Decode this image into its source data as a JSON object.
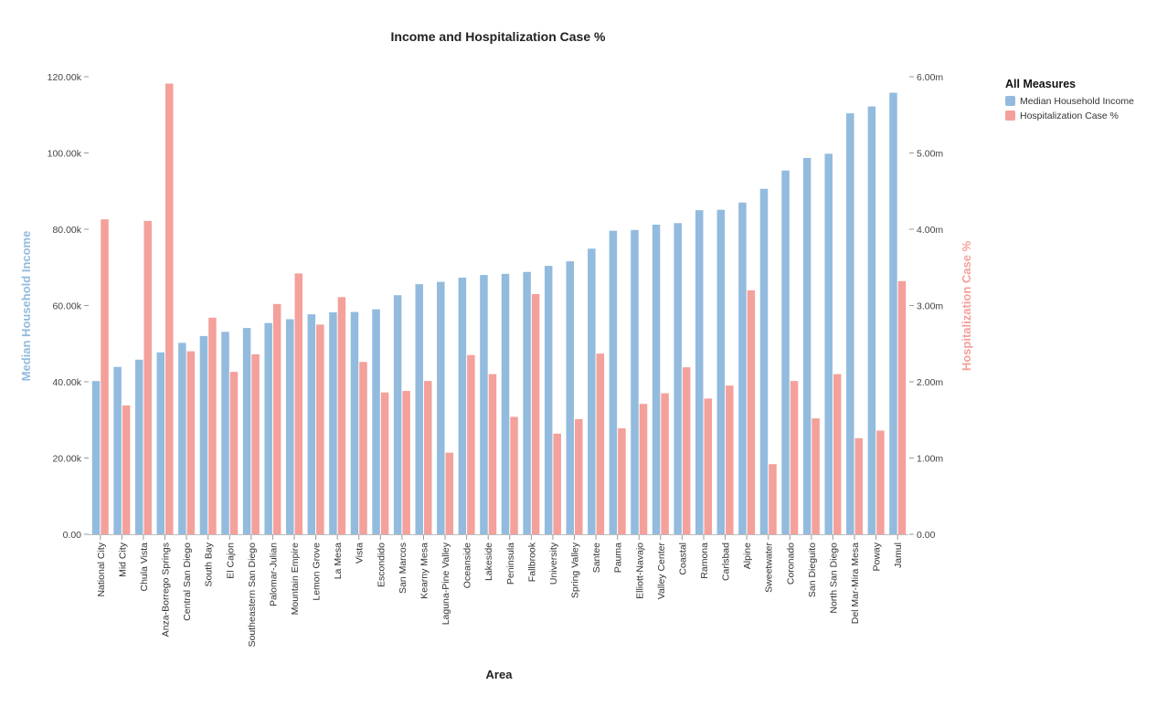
{
  "chart_data": {
    "type": "bar",
    "title": "Income and Hospitalization Case %",
    "xlabel": "Area",
    "ylabel_left": "Median Household Income",
    "ylabel_right": "Hospitalization Case %",
    "ylim_left": [
      0,
      120000
    ],
    "ylim_right": [
      0,
      0.006
    ],
    "yticks_left": [
      "0.00",
      "20.00k",
      "40.00k",
      "60.00k",
      "80.00k",
      "100.00k",
      "120.00k"
    ],
    "yticks_right": [
      "0.00",
      "1.00m",
      "2.00m",
      "3.00m",
      "4.00m",
      "5.00m",
      "6.00m"
    ],
    "legend": {
      "title": "All Measures",
      "position": "top-right"
    },
    "grid": false,
    "categories": [
      "National City",
      "Mid City",
      "Chula Vista",
      "Anza-Borrego Springs",
      "Central San Diego",
      "South Bay",
      "El Cajon",
      "Southeastern San Diego",
      "Palomar-Julian",
      "Mountain Empire",
      "Lemon Grove",
      "La Mesa",
      "Vista",
      "Escondido",
      "San Marcos",
      "Kearny Mesa",
      "Laguna-Pine Valley",
      "Oceanside",
      "Lakeside",
      "Peninsula",
      "Fallbrook",
      "University",
      "Spring Valley",
      "Santee",
      "Pauma",
      "Elliott-Navajo",
      "Valley Center",
      "Coastal",
      "Ramona",
      "Carlsbad",
      "Alpine",
      "Sweetwater",
      "Coronado",
      "San Dieguito",
      "North San Diego",
      "Del Mar-Mira Mesa",
      "Poway",
      "Jamul"
    ],
    "series": [
      {
        "name": "Median Household Income",
        "axis": "left",
        "color": "#92bbde",
        "values": [
          40200,
          43900,
          45800,
          47700,
          50200,
          52000,
          53100,
          54100,
          55400,
          56400,
          57700,
          58200,
          58300,
          59000,
          62700,
          65600,
          66200,
          67300,
          68000,
          68300,
          68800,
          70400,
          71600,
          74900,
          79600,
          79800,
          81200,
          81600,
          85000,
          85100,
          87000,
          90600,
          95400,
          98700,
          99800,
          110400,
          112200,
          115800
        ]
      },
      {
        "name": "Hospitalization Case %",
        "axis": "right",
        "color": "#f4a09b",
        "values": [
          0.00413,
          0.00169,
          0.00411,
          0.00591,
          0.0024,
          0.00284,
          0.00213,
          0.00236,
          0.00302,
          0.00342,
          0.00275,
          0.00311,
          0.00226,
          0.00186,
          0.00188,
          0.00201,
          0.00107,
          0.00235,
          0.0021,
          0.00154,
          0.00315,
          0.00132,
          0.00151,
          0.00237,
          0.00139,
          0.00171,
          0.00185,
          0.00219,
          0.00178,
          0.00195,
          0.0032,
          0.00092,
          0.00201,
          0.00152,
          0.0021,
          0.00126,
          0.00136,
          0.00332
        ]
      }
    ]
  }
}
